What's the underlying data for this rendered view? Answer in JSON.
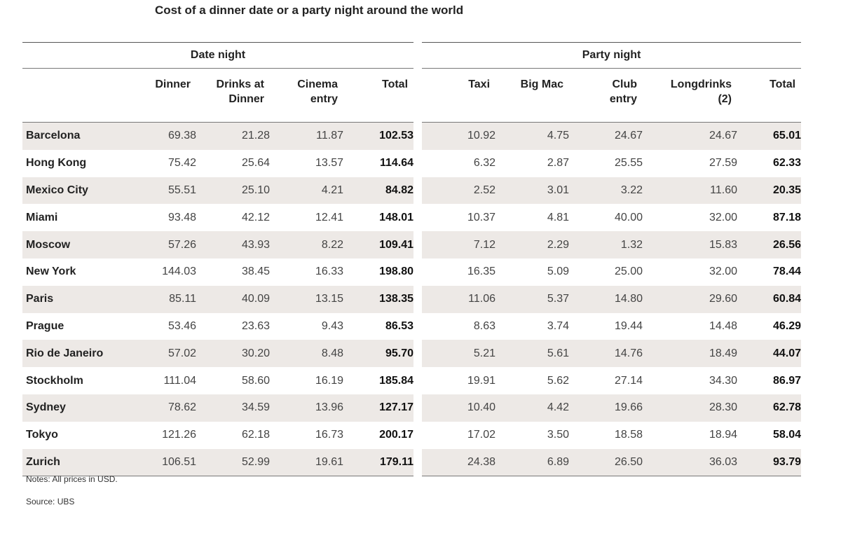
{
  "title": "Cost of a dinner date or a party night around the world",
  "notes": "Notes: All prices in USD.",
  "source": "Source: UBS",
  "chart_data": {
    "type": "table",
    "title": "Cost of a dinner date or a party night around the world",
    "groups": [
      {
        "label": "Date night",
        "columns": [
          "Dinner",
          "Drinks at Dinner",
          "Cinema entry",
          "Total"
        ]
      },
      {
        "label": "Party night",
        "columns": [
          "Taxi",
          "Big Mac",
          "Club entry",
          "Longdrinks (2)",
          "Total"
        ]
      }
    ],
    "header_lines": {
      "date": [
        [
          "Dinner"
        ],
        [
          "Drinks at",
          "Dinner"
        ],
        [
          "Cinema",
          "entry"
        ],
        [
          "Total"
        ]
      ],
      "party": [
        [
          "Taxi"
        ],
        [
          "Big Mac"
        ],
        [
          "Club",
          "entry"
        ],
        [
          "Longdrinks",
          "(2)"
        ],
        [
          "Total"
        ]
      ]
    },
    "rows": [
      {
        "city": "Barcelona",
        "date": [
          "69.38",
          "21.28",
          "11.87",
          "102.53"
        ],
        "party": [
          "10.92",
          "4.75",
          "24.67",
          "24.67",
          "65.01"
        ]
      },
      {
        "city": "Hong Kong",
        "date": [
          "75.42",
          "25.64",
          "13.57",
          "114.64"
        ],
        "party": [
          "6.32",
          "2.87",
          "25.55",
          "27.59",
          "62.33"
        ]
      },
      {
        "city": "Mexico City",
        "date": [
          "55.51",
          "25.10",
          "4.21",
          "84.82"
        ],
        "party": [
          "2.52",
          "3.01",
          "3.22",
          "11.60",
          "20.35"
        ]
      },
      {
        "city": "Miami",
        "date": [
          "93.48",
          "42.12",
          "12.41",
          "148.01"
        ],
        "party": [
          "10.37",
          "4.81",
          "40.00",
          "32.00",
          "87.18"
        ]
      },
      {
        "city": "Moscow",
        "date": [
          "57.26",
          "43.93",
          "8.22",
          "109.41"
        ],
        "party": [
          "7.12",
          "2.29",
          "1.32",
          "15.83",
          "26.56"
        ]
      },
      {
        "city": "New York",
        "date": [
          "144.03",
          "38.45",
          "16.33",
          "198.80"
        ],
        "party": [
          "16.35",
          "5.09",
          "25.00",
          "32.00",
          "78.44"
        ]
      },
      {
        "city": "Paris",
        "date": [
          "85.11",
          "40.09",
          "13.15",
          "138.35"
        ],
        "party": [
          "11.06",
          "5.37",
          "14.80",
          "29.60",
          "60.84"
        ]
      },
      {
        "city": "Prague",
        "date": [
          "53.46",
          "23.63",
          "9.43",
          "86.53"
        ],
        "party": [
          "8.63",
          "3.74",
          "19.44",
          "14.48",
          "46.29"
        ]
      },
      {
        "city": "Rio de Janeiro",
        "date": [
          "57.02",
          "30.20",
          "8.48",
          "95.70"
        ],
        "party": [
          "5.21",
          "5.61",
          "14.76",
          "18.49",
          "44.07"
        ]
      },
      {
        "city": "Stockholm",
        "date": [
          "111.04",
          "58.60",
          "16.19",
          "185.84"
        ],
        "party": [
          "19.91",
          "5.62",
          "27.14",
          "34.30",
          "86.97"
        ]
      },
      {
        "city": "Sydney",
        "date": [
          "78.62",
          "34.59",
          "13.96",
          "127.17"
        ],
        "party": [
          "10.40",
          "4.42",
          "19.66",
          "28.30",
          "62.78"
        ]
      },
      {
        "city": "Tokyo",
        "date": [
          "121.26",
          "62.18",
          "16.73",
          "200.17"
        ],
        "party": [
          "17.02",
          "3.50",
          "18.58",
          "18.94",
          "58.04"
        ]
      },
      {
        "city": "Zurich",
        "date": [
          "106.51",
          "52.99",
          "19.61",
          "179.11"
        ],
        "party": [
          "24.38",
          "6.89",
          "26.50",
          "36.03",
          "93.79"
        ]
      }
    ],
    "colors": {
      "shaded_row": "#ede9e6",
      "rule": "#777777"
    }
  }
}
